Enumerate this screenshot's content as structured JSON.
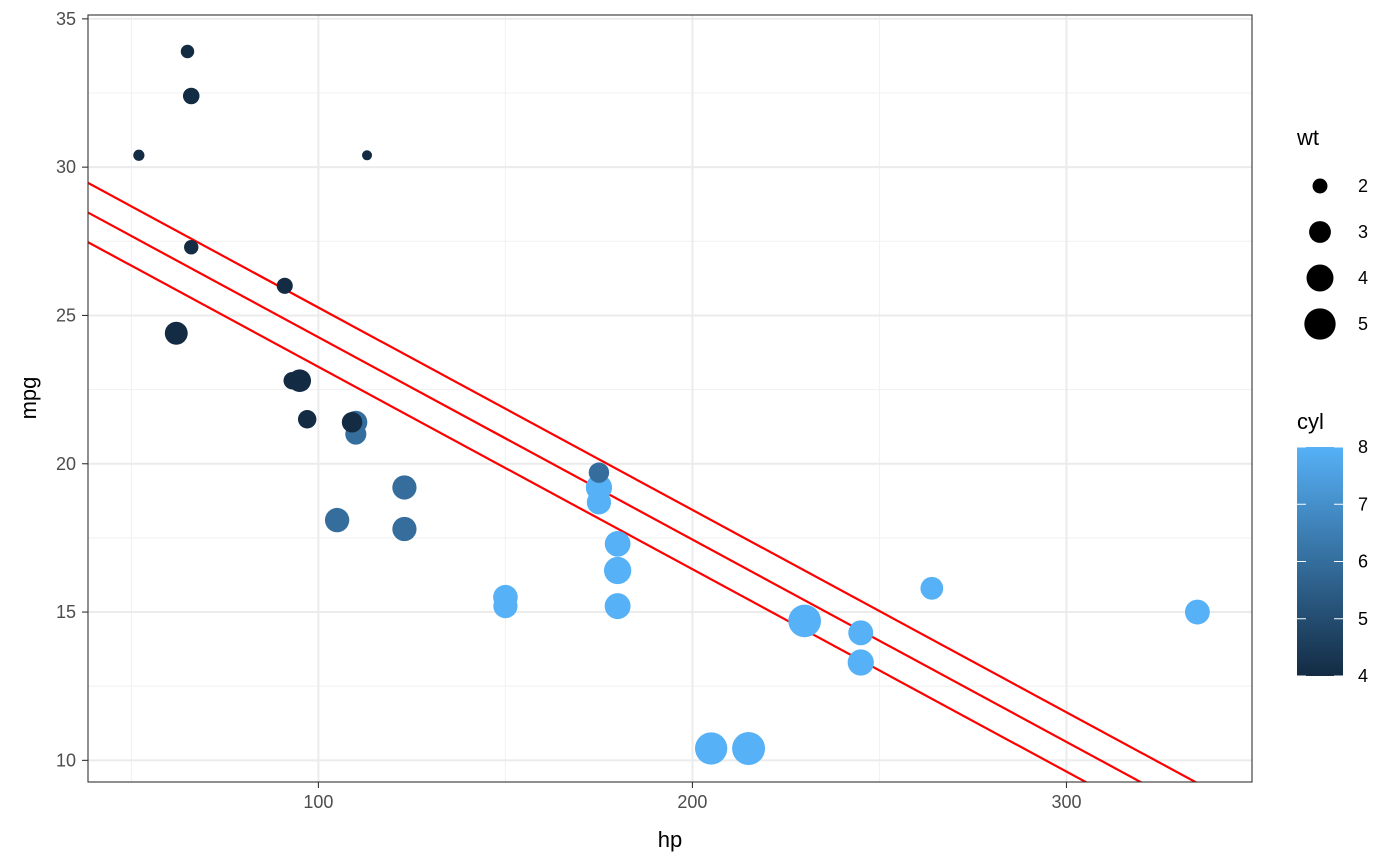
{
  "chart_data": {
    "type": "scatter",
    "xlabel": "hp",
    "ylabel": "mpg",
    "xlim": [
      38.4,
      349.6
    ],
    "ylim": [
      9.27,
      35.13
    ],
    "x_ticks": [
      100,
      200,
      300
    ],
    "x_minor_ticks": [
      50,
      150,
      250
    ],
    "y_ticks": [
      10,
      15,
      20,
      25,
      30,
      35
    ],
    "y_minor_ticks": [
      12.5,
      17.5,
      22.5,
      27.5,
      32.5
    ],
    "grid": true,
    "theme": "bw",
    "size_legend": {
      "title": "wt",
      "placement": "right",
      "entries": [
        {
          "label": "2",
          "value": 2
        },
        {
          "label": "3",
          "value": 3
        },
        {
          "label": "4",
          "value": 4
        },
        {
          "label": "5",
          "value": 5
        }
      ]
    },
    "color_legend": {
      "title": "cyl",
      "placement": "right",
      "low": 4,
      "high": 8,
      "low_color": "#132B43",
      "high_color": "#56B1F7",
      "tick_labels": [
        "4",
        "5",
        "6",
        "7",
        "8"
      ],
      "tick_values": [
        4,
        5,
        6,
        7,
        8
      ]
    },
    "lines": [
      {
        "intercept": 31.09,
        "slope": -0.06823,
        "color": "#FF0000"
      },
      {
        "intercept": 32.09,
        "slope": -0.06823,
        "color": "#FF0000"
      },
      {
        "intercept": 30.09,
        "slope": -0.06823,
        "color": "#FF0000"
      }
    ],
    "points": [
      {
        "x": 110,
        "y": 21.0,
        "wt": 2.62,
        "cyl": 6
      },
      {
        "x": 110,
        "y": 21.0,
        "wt": 2.875,
        "cyl": 6
      },
      {
        "x": 93,
        "y": 22.8,
        "wt": 2.32,
        "cyl": 4
      },
      {
        "x": 110,
        "y": 21.4,
        "wt": 3.215,
        "cyl": 6
      },
      {
        "x": 175,
        "y": 18.7,
        "wt": 3.44,
        "cyl": 8
      },
      {
        "x": 105,
        "y": 18.1,
        "wt": 3.46,
        "cyl": 6
      },
      {
        "x": 245,
        "y": 14.3,
        "wt": 3.57,
        "cyl": 8
      },
      {
        "x": 62,
        "y": 24.4,
        "wt": 3.19,
        "cyl": 4
      },
      {
        "x": 95,
        "y": 22.8,
        "wt": 3.15,
        "cyl": 4
      },
      {
        "x": 123,
        "y": 19.2,
        "wt": 3.44,
        "cyl": 6
      },
      {
        "x": 123,
        "y": 17.8,
        "wt": 3.44,
        "cyl": 6
      },
      {
        "x": 180,
        "y": 16.4,
        "wt": 4.07,
        "cyl": 8
      },
      {
        "x": 180,
        "y": 17.3,
        "wt": 3.73,
        "cyl": 8
      },
      {
        "x": 180,
        "y": 15.2,
        "wt": 3.78,
        "cyl": 8
      },
      {
        "x": 205,
        "y": 10.4,
        "wt": 5.25,
        "cyl": 8
      },
      {
        "x": 215,
        "y": 10.4,
        "wt": 5.424,
        "cyl": 8
      },
      {
        "x": 230,
        "y": 14.7,
        "wt": 5.345,
        "cyl": 8
      },
      {
        "x": 66,
        "y": 32.4,
        "wt": 2.2,
        "cyl": 4
      },
      {
        "x": 52,
        "y": 30.4,
        "wt": 1.615,
        "cyl": 4
      },
      {
        "x": 65,
        "y": 33.9,
        "wt": 1.835,
        "cyl": 4
      },
      {
        "x": 97,
        "y": 21.5,
        "wt": 2.465,
        "cyl": 4
      },
      {
        "x": 150,
        "y": 15.5,
        "wt": 3.52,
        "cyl": 8
      },
      {
        "x": 150,
        "y": 15.2,
        "wt": 3.435,
        "cyl": 8
      },
      {
        "x": 245,
        "y": 13.3,
        "wt": 3.84,
        "cyl": 8
      },
      {
        "x": 175,
        "y": 19.2,
        "wt": 3.845,
        "cyl": 8
      },
      {
        "x": 66,
        "y": 27.3,
        "wt": 1.935,
        "cyl": 4
      },
      {
        "x": 91,
        "y": 26.0,
        "wt": 2.14,
        "cyl": 4
      },
      {
        "x": 113,
        "y": 30.4,
        "wt": 1.513,
        "cyl": 4
      },
      {
        "x": 264,
        "y": 15.8,
        "wt": 3.17,
        "cyl": 8
      },
      {
        "x": 175,
        "y": 19.7,
        "wt": 2.77,
        "cyl": 6
      },
      {
        "x": 335,
        "y": 15.0,
        "wt": 3.57,
        "cyl": 8
      },
      {
        "x": 109,
        "y": 21.4,
        "wt": 2.78,
        "cyl": 4
      }
    ]
  }
}
